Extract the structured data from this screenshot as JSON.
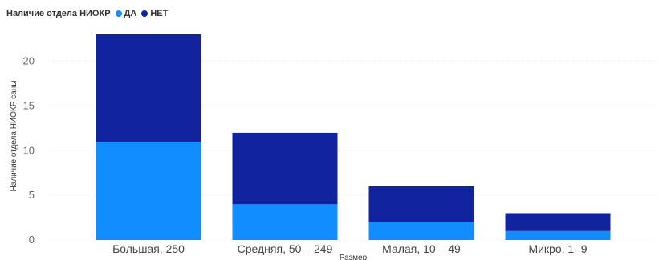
{
  "chart_data": {
    "type": "bar",
    "stacked": true,
    "legend_title": "Наличие отдела НИОКР",
    "legend_position": "top-left",
    "categories": [
      "Большая, 250",
      "Средняя, 50 – 249",
      "Малая, 10 – 49",
      "Микро, 1- 9"
    ],
    "series": [
      {
        "name": "ДА",
        "color": "#118DFF",
        "values": [
          11,
          4,
          2,
          1
        ]
      },
      {
        "name": "НЕТ",
        "color": "#12239E",
        "values": [
          12,
          8,
          4,
          2
        ]
      }
    ],
    "xlabel": "Размер",
    "ylabel": "Наличие отдела НИОКР сaны",
    "ylim": [
      0,
      23
    ],
    "yticks": [
      0,
      5,
      10,
      15,
      20
    ],
    "grid": true
  }
}
